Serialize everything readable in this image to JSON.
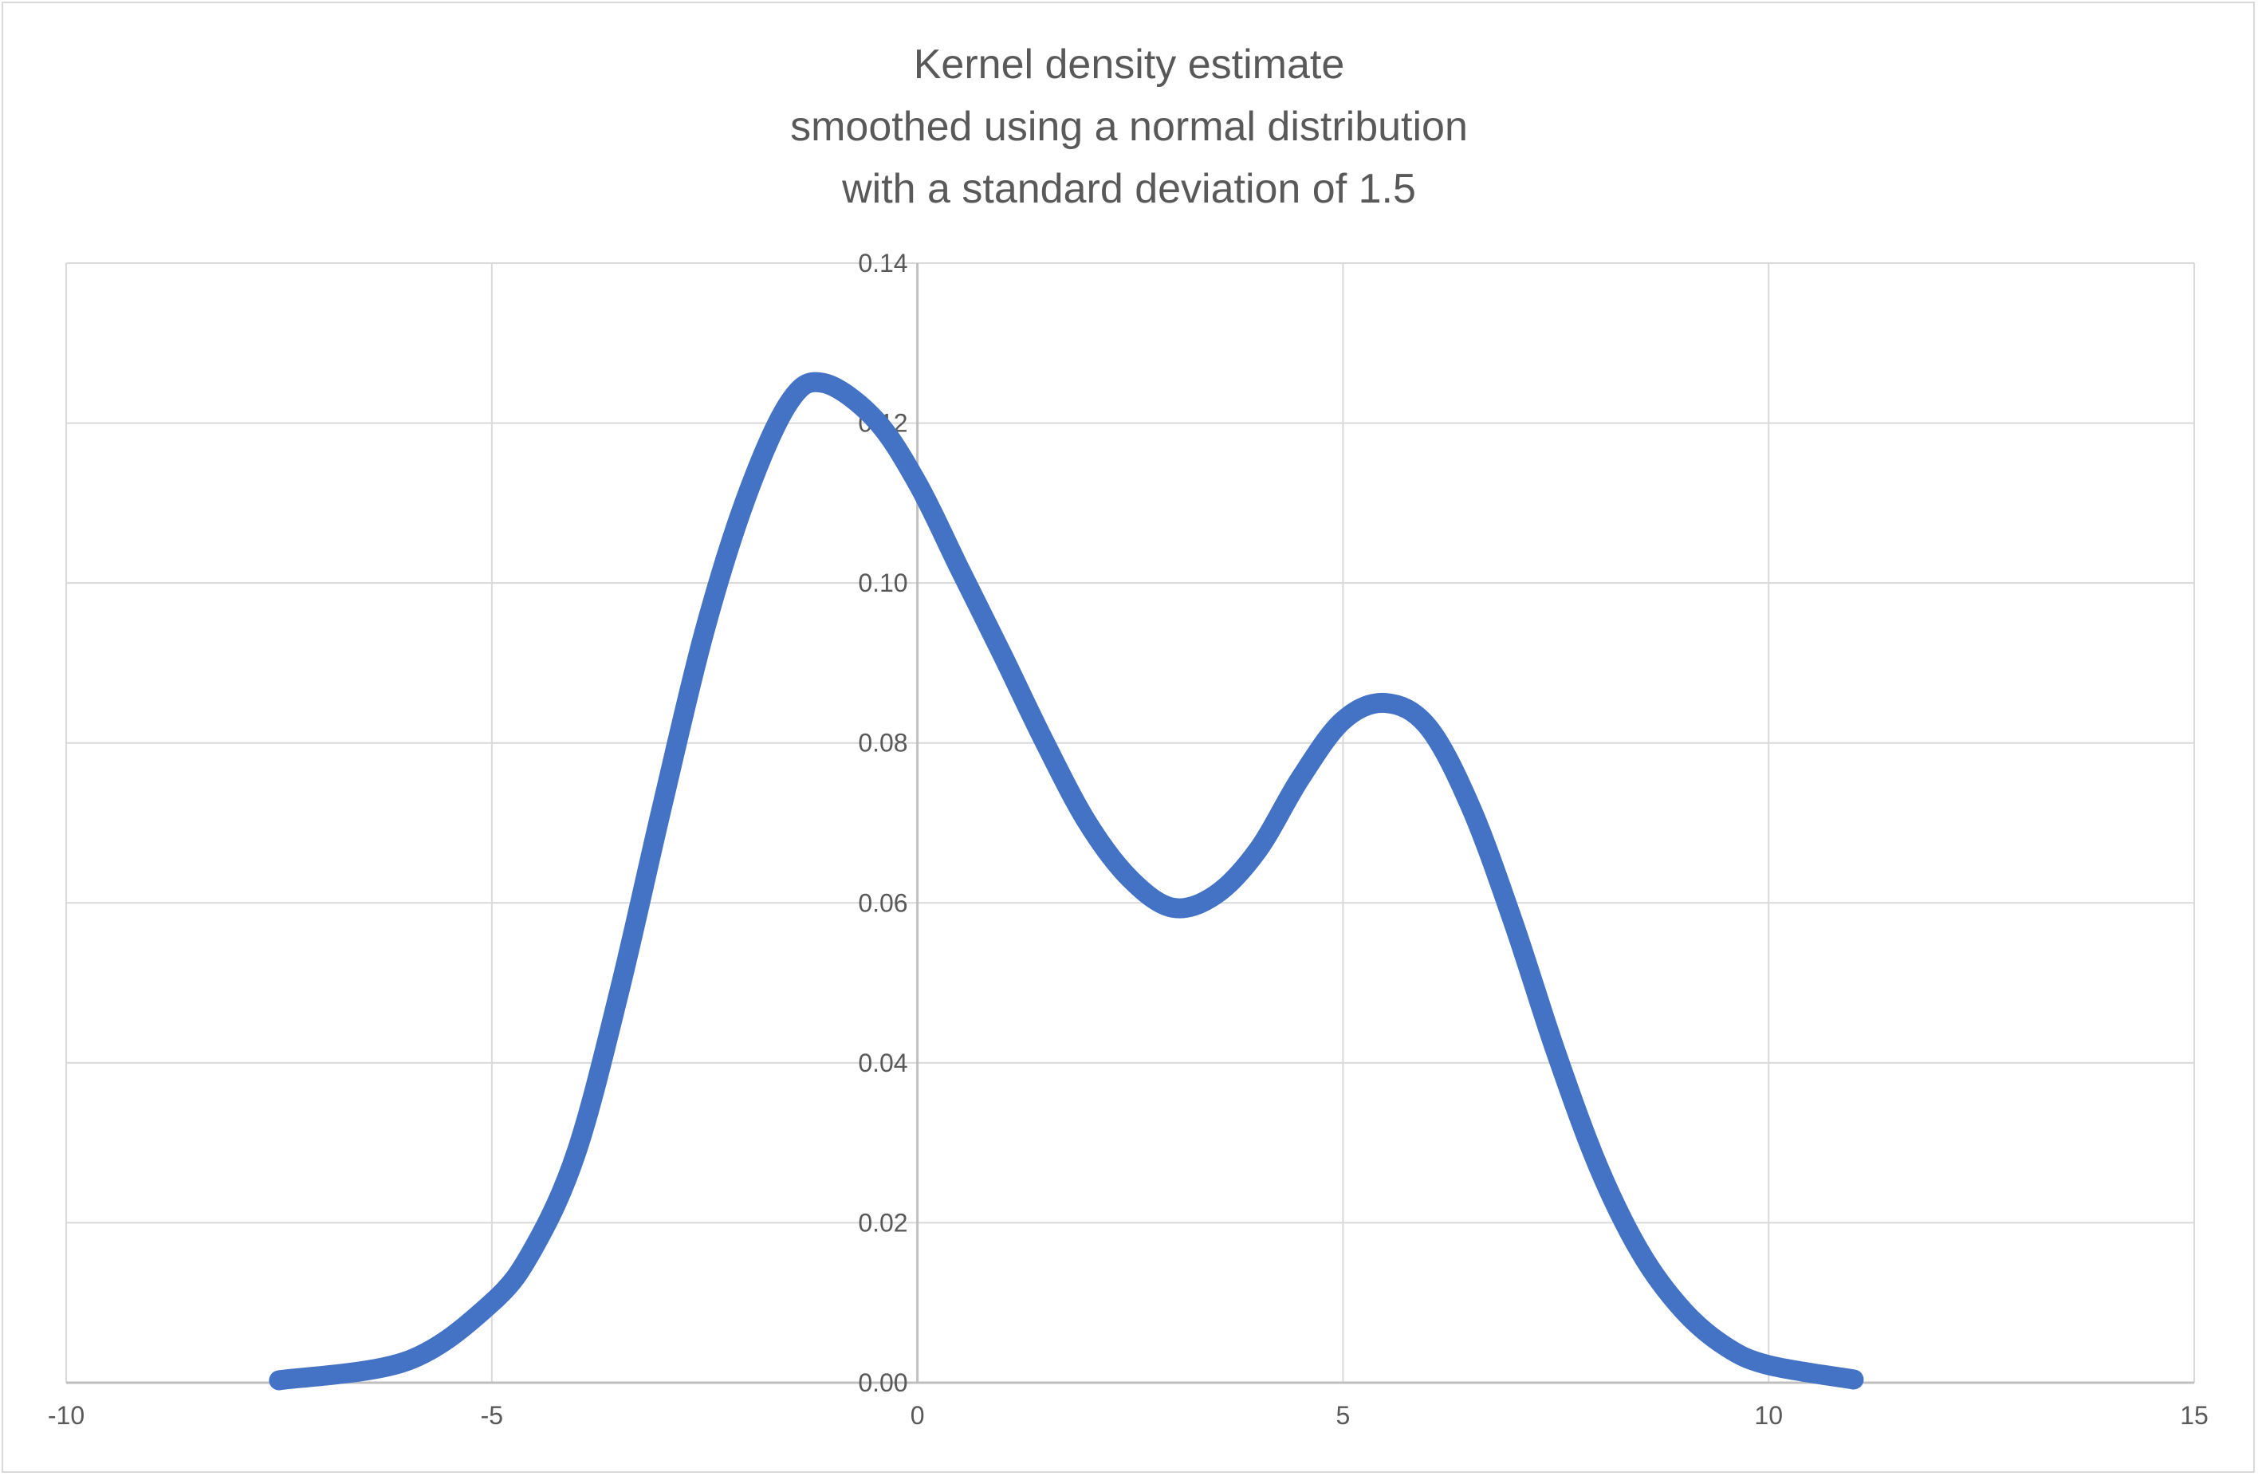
{
  "chart_data": {
    "type": "line",
    "title": [
      "Kernel density estimate",
      "smoothed using a normal distribution",
      "with a standard deviation of 1.5"
    ],
    "xlabel": "",
    "ylabel": "",
    "xlim": [
      -10,
      15
    ],
    "ylim": [
      0,
      0.14
    ],
    "x_ticks": [
      "-10",
      "-5",
      "0",
      "5",
      "10",
      "15"
    ],
    "y_ticks": [
      "0.00",
      "0.02",
      "0.04",
      "0.06",
      "0.08",
      "0.10",
      "0.12",
      "0.14"
    ],
    "grid": true,
    "legend": "none",
    "line_color": "#4472C4",
    "series": [
      {
        "x": [
          -7.5,
          -6,
          -5,
          -4.5,
          -4,
          -3.5,
          -3,
          -2.5,
          -2,
          -1.5,
          -1.1,
          -0.5,
          0,
          0.5,
          1,
          1.5,
          2,
          2.5,
          3,
          3.5,
          4,
          4.5,
          5,
          5.5,
          6,
          6.5,
          7,
          7.5,
          8,
          8.5,
          9,
          9.5,
          10,
          11
        ],
        "y": [
          0.0003,
          0.0027,
          0.01,
          0.017,
          0.029,
          0.049,
          0.072,
          0.094,
          0.111,
          0.1227,
          0.125,
          0.1205,
          0.1125,
          0.1017,
          0.091,
          0.08,
          0.07,
          0.063,
          0.0594,
          0.061,
          0.0666,
          0.0756,
          0.0828,
          0.085,
          0.082,
          0.072,
          0.0576,
          0.0414,
          0.027,
          0.0162,
          0.009,
          0.0045,
          0.0022,
          0.0004
        ]
      }
    ]
  }
}
